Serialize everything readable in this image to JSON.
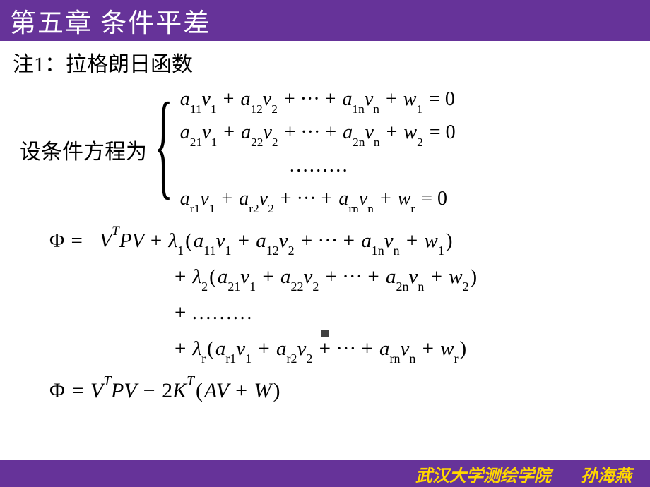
{
  "colors": {
    "header_bg": "#663399",
    "header_text": "#ffffff",
    "body_text": "#000000",
    "footer_bg": "#663399",
    "footer_text": "#ffd700"
  },
  "header": {
    "title": "第五章  条件平差"
  },
  "note": "注1：拉格朗日函数",
  "cond_label": "设条件方程为",
  "eq1": "a₁₁v₁ + a₁₂v₂ + ··· + a₁ₙvₙ + w₁ = 0",
  "eq2": "a₂₁v₁ + a₂₂v₂ + ··· + a₂ₙvₙ + w₂ = 0",
  "eq_dots": "………",
  "eq_r": "aᵣ₁v₁ + aᵣ₂v₂ + ··· + aᵣₙvₙ + wᵣ = 0",
  "phi1": "Φ =   VᵀPV + λ₁(a₁₁v₁ + a₁₂v₂ + ··· + a₁ₙvₙ + w₁)",
  "phi2": "+ λ₂(a₂₁v₁ + a₂₂v₂ + ··· + a₂ₙvₙ + w₂)",
  "phi_dots": "+ ………",
  "phi_r": "+ λᵣ(aᵣ₁v₁ + aᵣ₂v₂ + ··· + aᵣₙvₙ + wᵣ)",
  "final": "Φ = VᵀPV − 2Kᵀ(AV + W)",
  "footer": {
    "school": "武汉大学测绘学院",
    "author": "孙海燕"
  }
}
